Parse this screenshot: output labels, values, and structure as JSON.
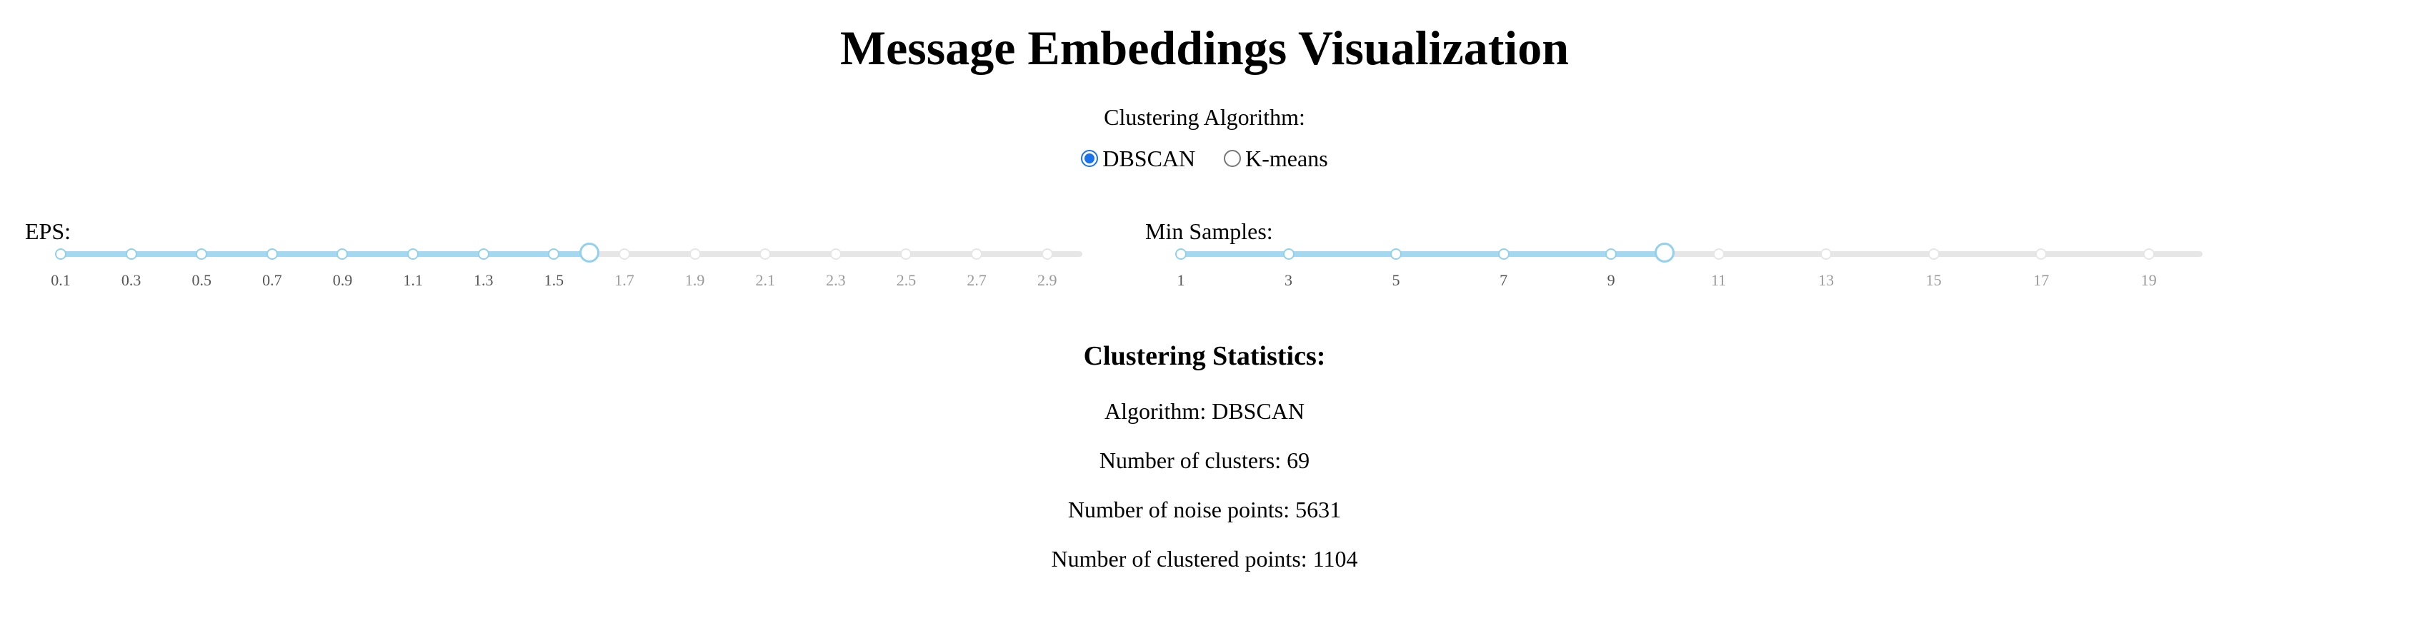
{
  "page": {
    "title": "Message Embeddings Visualization"
  },
  "algorithm": {
    "label": "Clustering Algorithm:",
    "options": [
      {
        "label": "DBSCAN",
        "checked": true
      },
      {
        "label": "K-means",
        "checked": false
      }
    ],
    "accent_color": "#1a73e8"
  },
  "eps_slider": {
    "label": "EPS:",
    "min": 0.1,
    "max": 3.0,
    "value": 1.6,
    "marks": [
      "0.1",
      "0.3",
      "0.5",
      "0.7",
      "0.9",
      "1.1",
      "1.3",
      "1.5",
      "1.7",
      "1.9",
      "2.1",
      "2.3",
      "2.5",
      "2.7",
      "2.9"
    ],
    "track_color": "#a3d8f0",
    "rail_color": "#e6e6e6"
  },
  "min_samples_slider": {
    "label": "Min Samples:",
    "min": 1,
    "max": 20,
    "value": 10,
    "marks": [
      "1",
      "3",
      "5",
      "7",
      "9",
      "11",
      "13",
      "15",
      "17",
      "19"
    ],
    "track_color": "#a3d8f0",
    "rail_color": "#e6e6e6"
  },
  "stats": {
    "title": "Clustering Statistics:",
    "algorithm_line": "Algorithm: DBSCAN",
    "clusters_line": "Number of clusters: 69",
    "noise_line": "Number of noise points: 5631",
    "clustered_line": "Number of clustered points: 1104"
  }
}
